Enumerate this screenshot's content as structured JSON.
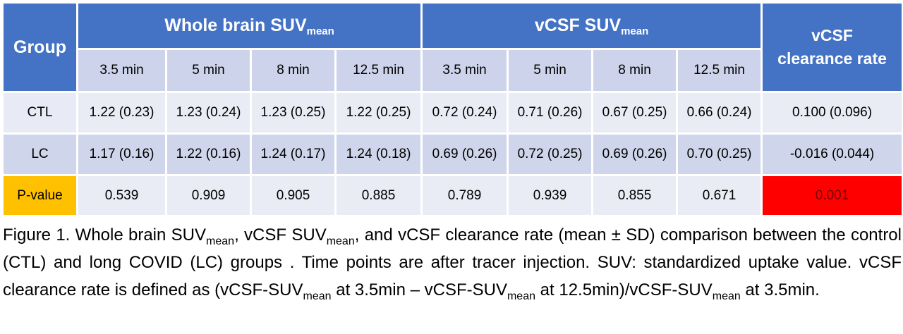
{
  "table": {
    "group_header": "Group",
    "whole_brain_header": "Whole brain SUV",
    "vcsf_header": "vCSF SUV",
    "subscript_mean": "mean",
    "clearance_header_line1": "vCSF",
    "clearance_header_line2": "clearance rate",
    "timepoints": [
      "3.5 min",
      "5 min",
      "8 min",
      "12.5 min",
      "3.5 min",
      "5 min",
      "8 min",
      "12.5 min"
    ],
    "rows": [
      {
        "label": "CTL",
        "values": [
          "1.22 (0.23)",
          "1.23 (0.24)",
          "1.23 (0.25)",
          "1.22 (0.25)",
          "0.72 (0.24)",
          "0.71 (0.26)",
          "0.67 (0.25)",
          "0.66 (0.24)"
        ],
        "clearance": "0.100 (0.096)"
      },
      {
        "label": "LC",
        "values": [
          "1.17 (0.16)",
          "1.22 (0.16)",
          "1.24 (0.17)",
          "1.24 (0.18)",
          "0.69 (0.26)",
          "0.72 (0.25)",
          "0.69 (0.26)",
          "0.70 (0.25)"
        ],
        "clearance": "-0.016 (0.044)"
      },
      {
        "label": "P-value",
        "values": [
          "0.539",
          "0.909",
          "0.905",
          "0.885",
          "0.789",
          "0.939",
          "0.855",
          "0.671"
        ],
        "clearance": "0.001"
      }
    ]
  },
  "caption": {
    "p1": "Figure 1. Whole brain SUV",
    "s1": "mean",
    "p2": ", vCSF SUV",
    "s2": "mean",
    "p3": ", and vCSF clearance rate (mean ± SD) comparison between the control (CTL) and long COVID (LC) groups . Time points are after tracer injection. SUV: standardized uptake value. vCSF clearance rate is defined as (vCSF-SUV",
    "s3": "mean",
    "p4": " at 3.5min – vCSF-SUV",
    "s4": "mean",
    "p5": " at 12.5min)/vCSF-SUV",
    "s5": "mean",
    "p6": " at 3.5min."
  },
  "colors": {
    "header_blue": "#4472c4",
    "subheader": "#cdd3ea",
    "row_light": "#e9ebf5",
    "row_dark": "#cfd5ea",
    "pvalue_label": "#ffc000",
    "significant": "#ff0000"
  }
}
